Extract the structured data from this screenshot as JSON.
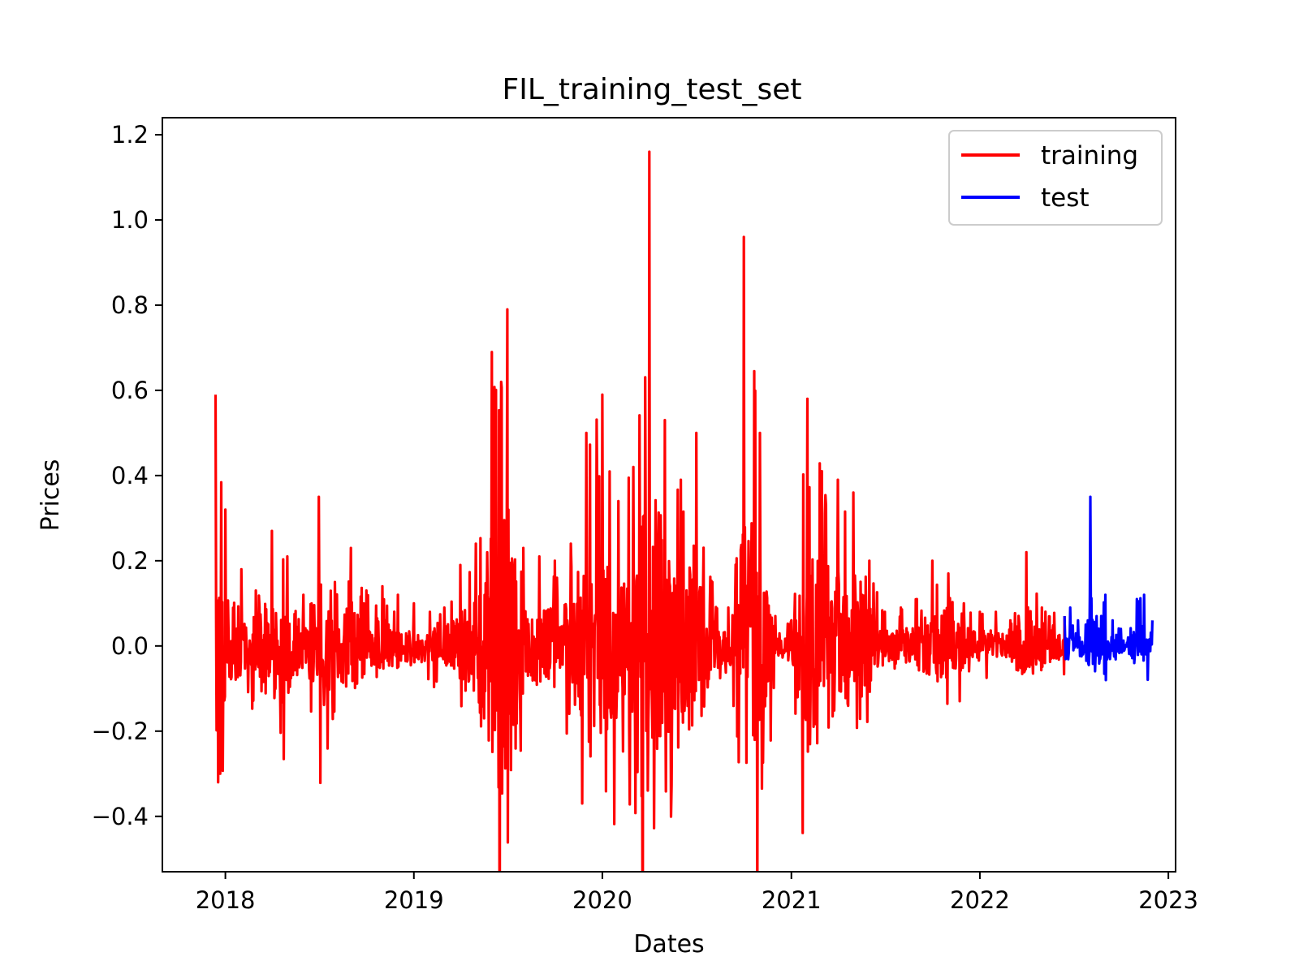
{
  "chart_data": {
    "type": "line",
    "title": "FIL_training_test_set",
    "xlabel": "Dates",
    "ylabel": "Prices",
    "x_ticks": [
      "2018",
      "2019",
      "2020",
      "2021",
      "2022",
      "2023"
    ],
    "y_ticks": [
      "−0.4",
      "−0.2",
      "0.0",
      "0.2",
      "0.4",
      "0.6",
      "0.8",
      "1.0",
      "1.2"
    ],
    "xlim": [
      "2017-09-01",
      "2023-01-15"
    ],
    "ylim": [
      -0.53,
      1.24
    ],
    "grid": false,
    "legend_position": "top-right",
    "series": [
      {
        "name": "training",
        "color": "#ff0000",
        "x": [
          "2017-12-13",
          "2018-01-01",
          "2018-02-01",
          "2018-03-01",
          "2018-04-01",
          "2018-05-01",
          "2018-06-01",
          "2018-07-01",
          "2018-08-01",
          "2018-09-01",
          "2018-10-01",
          "2018-11-01",
          "2018-12-01",
          "2019-01-01",
          "2019-02-01",
          "2019-03-01",
          "2019-04-01",
          "2019-05-01",
          "2019-06-01",
          "2019-07-01",
          "2019-08-01",
          "2019-09-01",
          "2019-10-01",
          "2019-11-01",
          "2019-12-01",
          "2020-01-01",
          "2020-02-01",
          "2020-03-01",
          "2020-04-01",
          "2020-05-01",
          "2020-06-01",
          "2020-07-01",
          "2020-08-01",
          "2020-09-01",
          "2020-10-01",
          "2020-11-01",
          "2020-12-01",
          "2021-01-01",
          "2021-02-01",
          "2021-03-01",
          "2021-04-01",
          "2021-05-01",
          "2021-06-01",
          "2021-07-01",
          "2021-08-01",
          "2021-09-01",
          "2021-10-01",
          "2021-11-01",
          "2021-12-01",
          "2022-01-01",
          "2022-02-01",
          "2022-03-01",
          "2022-04-01",
          "2022-05-01",
          "2022-06-14"
        ],
        "y": [
          0.59,
          0.32,
          0.18,
          0.13,
          0.27,
          0.21,
          0.12,
          0.35,
          0.15,
          0.23,
          0.13,
          0.14,
          0.12,
          0.1,
          0.08,
          0.09,
          0.19,
          0.24,
          0.69,
          0.79,
          0.23,
          0.21,
          0.2,
          0.24,
          0.5,
          0.59,
          0.34,
          0.42,
          1.16,
          0.53,
          0.39,
          0.5,
          0.15,
          0.09,
          0.96,
          0.5,
          0.07,
          0.06,
          0.58,
          0.41,
          0.39,
          0.36,
          0.2,
          0.08,
          0.09,
          0.11,
          0.2,
          0.17,
          0.1,
          0.08,
          0.08,
          0.06,
          0.22,
          0.09,
          0.07
        ]
      },
      {
        "name": "test",
        "color": "#0000ff",
        "x": [
          "2022-06-14",
          "2022-06-25",
          "2022-07-10",
          "2022-07-25",
          "2022-08-03",
          "2022-08-15",
          "2022-09-01",
          "2022-09-15",
          "2022-10-01",
          "2022-10-15",
          "2022-11-01",
          "2022-11-15",
          "2022-12-01"
        ],
        "y": [
          0.07,
          0.09,
          0.06,
          0.05,
          0.35,
          0.07,
          0.12,
          0.06,
          0.04,
          0.02,
          0.11,
          0.12,
          0.06
        ]
      }
    ]
  }
}
